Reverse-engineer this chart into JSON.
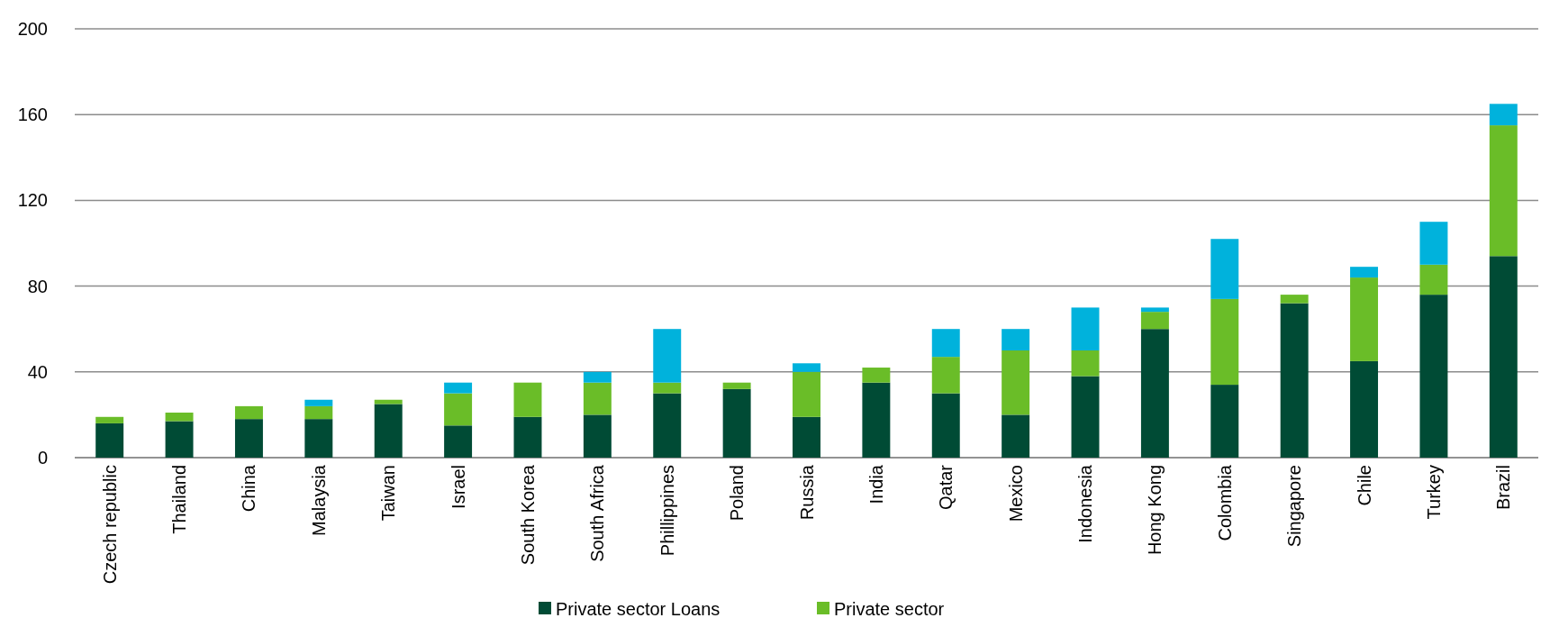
{
  "chart_data": {
    "type": "bar",
    "stacked": true,
    "categories": [
      "Czech republic",
      "Thailand",
      "China",
      "Malaysia",
      "Taiwan",
      "Israel",
      "South Korea",
      "South Africa",
      "Phillippines",
      "Poland",
      "Russia",
      "India",
      "Qatar",
      "Mexico",
      "Indonesia",
      "Hong Kong",
      "Colombia",
      "Singapore",
      "Chile",
      "Turkey",
      "Brazil"
    ],
    "series": [
      {
        "name": "Private sector Loans",
        "color": "#004b35",
        "values": [
          16,
          17,
          18,
          18,
          25,
          15,
          19,
          20,
          30,
          32,
          19,
          35,
          30,
          20,
          38,
          60,
          34,
          72,
          45,
          76,
          94
        ]
      },
      {
        "name": "Private sector",
        "color": "#6abd28",
        "values": [
          3,
          4,
          6,
          6,
          2,
          15,
          16,
          15,
          5,
          3,
          21,
          7,
          17,
          30,
          12,
          8,
          40,
          4,
          39,
          14,
          61
        ]
      },
      {
        "color": "#00b2dc",
        "values": [
          0,
          0,
          0,
          3,
          0,
          5,
          0,
          5,
          25,
          0,
          4,
          0,
          13,
          10,
          20,
          2,
          28,
          0,
          5,
          20,
          10
        ]
      }
    ],
    "ylim": [
      0,
      200
    ],
    "yticks": [
      0,
      40,
      80,
      120,
      160,
      200
    ],
    "grid": "y",
    "legend": "bottom"
  }
}
